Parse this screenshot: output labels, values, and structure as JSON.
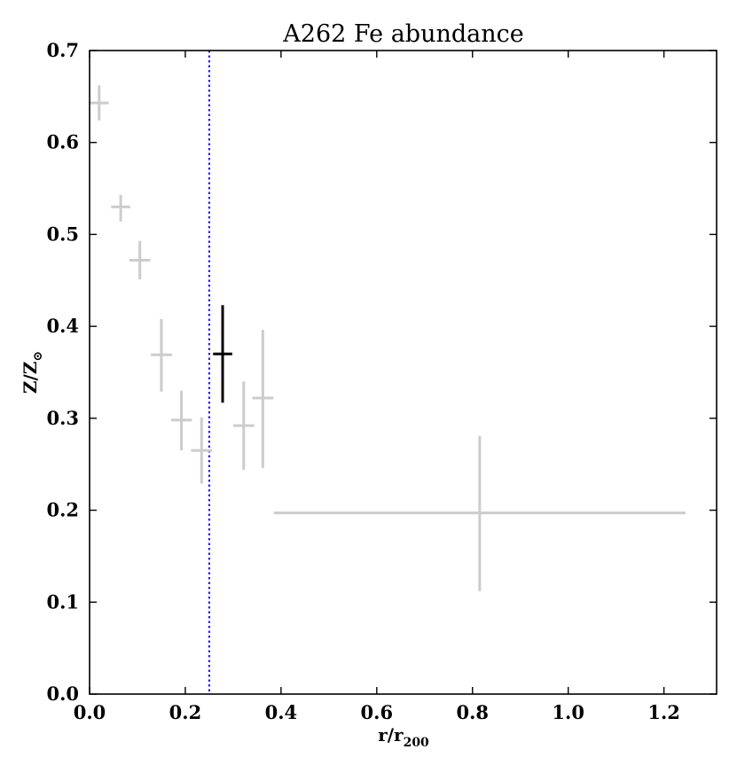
{
  "chart_data": {
    "type": "scatter",
    "title": "A262 Fe abundance",
    "xlabel": {
      "base": "r/r",
      "sub": "200"
    },
    "ylabel": {
      "base": "Z/Z",
      "sub": "⊙"
    },
    "xlim": [
      0.0,
      1.31
    ],
    "ylim": [
      0.0,
      0.7
    ],
    "xticks": [
      0.0,
      0.2,
      0.4,
      0.6,
      0.8,
      1.0,
      1.2
    ],
    "xtick_labels": [
      "0.0",
      "0.2",
      "0.4",
      "0.6",
      "0.8",
      "1.0",
      "1.2"
    ],
    "yticks": [
      0.0,
      0.1,
      0.2,
      0.3,
      0.4,
      0.5,
      0.6,
      0.7
    ],
    "ytick_labels": [
      "0.0",
      "0.1",
      "0.2",
      "0.3",
      "0.4",
      "0.5",
      "0.6",
      "0.7"
    ],
    "vline": {
      "x": 0.25,
      "color": "#2b2bd6",
      "style": "dotted"
    },
    "series": [
      {
        "color": "#cccccc",
        "points": [
          {
            "x": 0.02,
            "y": 0.643,
            "xerr": 0.02,
            "yerr_lo": 0.019,
            "yerr_hi": 0.019
          },
          {
            "x": 0.065,
            "y": 0.53,
            "xerr": 0.02,
            "yerr_lo": 0.016,
            "yerr_hi": 0.013
          },
          {
            "x": 0.105,
            "y": 0.472,
            "xerr": 0.022,
            "yerr_lo": 0.021,
            "yerr_hi": 0.021
          },
          {
            "x": 0.15,
            "y": 0.369,
            "xerr": 0.022,
            "yerr_lo": 0.04,
            "yerr_hi": 0.039
          },
          {
            "x": 0.192,
            "y": 0.298,
            "xerr": 0.022,
            "yerr_lo": 0.033,
            "yerr_hi": 0.032
          },
          {
            "x": 0.234,
            "y": 0.265,
            "xerr": 0.022,
            "yerr_lo": 0.036,
            "yerr_hi": 0.036
          },
          {
            "x": 0.322,
            "y": 0.292,
            "xerr": 0.022,
            "yerr_lo": 0.048,
            "yerr_hi": 0.048
          },
          {
            "x": 0.362,
            "y": 0.322,
            "xerr": 0.022,
            "yerr_lo": 0.076,
            "yerr_hi": 0.074
          },
          {
            "x": 0.815,
            "y": 0.197,
            "xerr_lo": 0.43,
            "xerr_hi": 0.43,
            "yerr_lo": 0.085,
            "yerr_hi": 0.084
          }
        ]
      },
      {
        "color": "#000000",
        "points": [
          {
            "x": 0.278,
            "y": 0.37,
            "xerr": 0.02,
            "yerr_lo": 0.053,
            "yerr_hi": 0.053
          }
        ]
      }
    ],
    "grid": false
  }
}
